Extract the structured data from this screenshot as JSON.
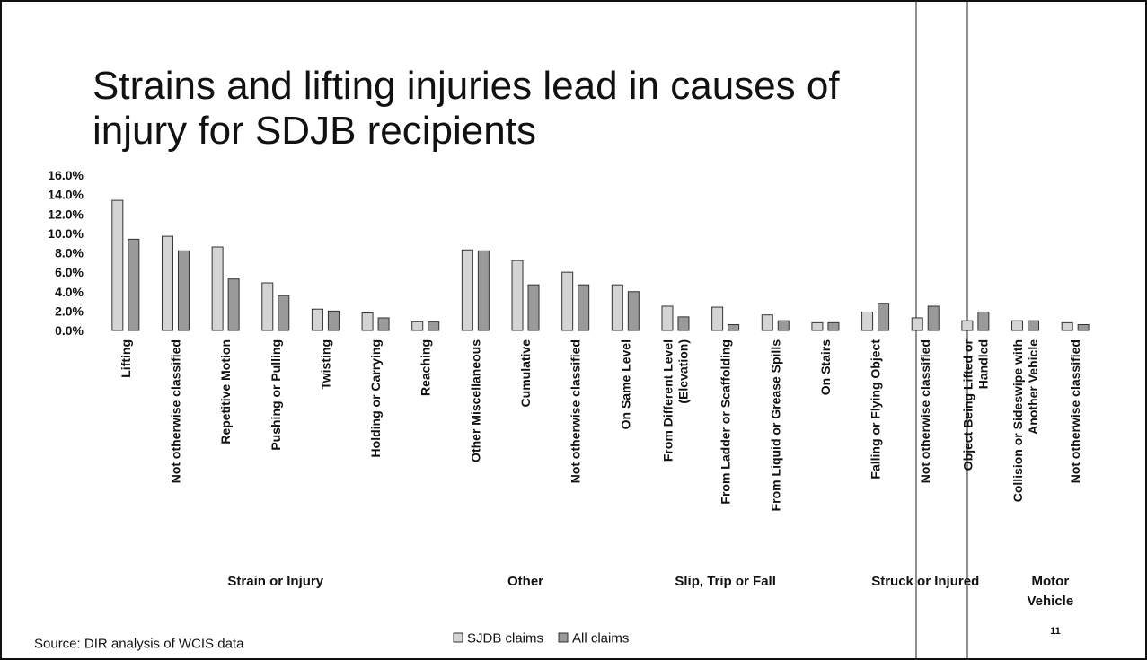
{
  "chart_data": {
    "type": "bar",
    "title": "Strains and lifting injuries lead in causes of injury for SDJB recipients",
    "source": "Source: DIR analysis of WCIS data",
    "page_number": "11",
    "categories": [
      "Lifting",
      "Not otherwise classified",
      "Repetitive Motion",
      "Pushing or Pulling",
      "Twisting",
      "Holding or Carrying",
      "Reaching",
      "Other Miscellaneous",
      "Cumulative",
      "Not otherwise classified",
      "On Same Level",
      "From Different Level (Elevation)",
      "From Ladder or Scaffolding",
      "From Liquid or Grease Spills",
      "On Stairs",
      "Falling or Flying Object",
      "Not otherwise classified",
      "Object Being Lifted or Handled",
      "Collision or Sideswipe with Another Vehicle",
      "Not otherwise classified"
    ],
    "groups": [
      {
        "name": "Strain or Injury",
        "span": 7
      },
      {
        "name": "Other",
        "span": 3
      },
      {
        "name": "Slip, Trip or Fall",
        "span": 5
      },
      {
        "name": "Struck or Injured",
        "span": 3
      },
      {
        "name": "Motor Vehicle",
        "span": 2
      }
    ],
    "series": [
      {
        "name": "SJDB claims",
        "color": "#d4d4d4",
        "values": [
          13.4,
          9.7,
          8.6,
          4.9,
          2.2,
          1.8,
          0.9,
          8.3,
          7.2,
          6.0,
          4.7,
          2.5,
          2.4,
          1.6,
          0.8,
          1.9,
          1.3,
          1.0,
          1.0,
          0.8
        ]
      },
      {
        "name": "All claims",
        "color": "#9a9a9a",
        "values": [
          9.4,
          8.2,
          5.3,
          3.6,
          2.0,
          1.3,
          0.9,
          8.2,
          4.7,
          4.7,
          4.0,
          1.4,
          0.6,
          1.0,
          0.8,
          2.8,
          2.5,
          1.9,
          1.0,
          0.6
        ]
      }
    ],
    "ylim": [
      0,
      16
    ],
    "yticks": [
      {
        "value": 0,
        "label": "0.0%"
      },
      {
        "value": 2,
        "label": "2.0%"
      },
      {
        "value": 4,
        "label": "4.0%"
      },
      {
        "value": 6,
        "label": "6.0%"
      },
      {
        "value": 8,
        "label": "8.0%"
      },
      {
        "value": 10,
        "label": "10.0%"
      },
      {
        "value": 12,
        "label": "12.0%"
      },
      {
        "value": 14,
        "label": "14.0%"
      },
      {
        "value": 16,
        "label": "16.0%"
      }
    ],
    "grid": false
  }
}
